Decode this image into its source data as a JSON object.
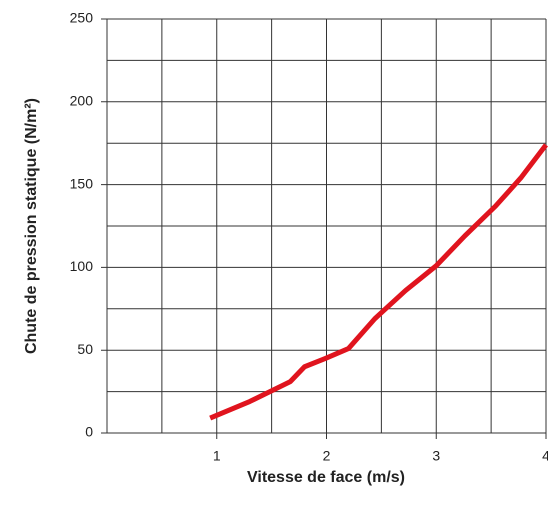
{
  "chart_data": {
    "type": "line",
    "x_label": "Vitesse de face (m/s)",
    "y_label": "Chute de pression statique (N/m²)",
    "series": [
      {
        "name": "Chute de pression",
        "color": "#e0141e",
        "x": [
          0.94,
          1.3,
          1.67,
          1.8,
          1.99,
          2.2,
          2.44,
          2.72,
          3.0,
          3.26,
          3.54,
          3.77,
          4.0
        ],
        "values": [
          9,
          19,
          31,
          40,
          45,
          51,
          69,
          86,
          101,
          119,
          137,
          154,
          174
        ]
      }
    ],
    "xlim": [
      0,
      4
    ],
    "xticks": [
      1,
      2,
      3,
      4
    ],
    "x_minor_ticks": [
      0.5,
      1.5,
      2.5,
      3.5
    ],
    "ylim": [
      0,
      250
    ],
    "yticks": [
      0,
      50,
      100,
      150,
      200,
      250
    ],
    "y_minor_ticks": [
      25,
      75,
      125,
      175,
      225
    ],
    "grid": true
  }
}
